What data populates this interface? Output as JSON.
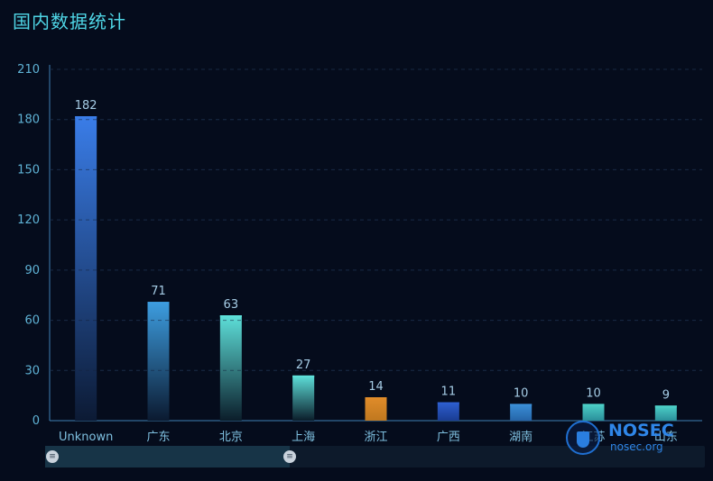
{
  "header": {
    "title": "国内数据统计"
  },
  "chart_data": {
    "type": "bar",
    "title": "国内数据统计",
    "categories": [
      "Unknown",
      "广东",
      "北京",
      "上海",
      "浙江",
      "广西",
      "湖南",
      "江苏",
      "山东"
    ],
    "values": [
      182,
      71,
      63,
      27,
      14,
      11,
      10,
      10,
      9
    ],
    "ylim": [
      0,
      210
    ],
    "yticks": [
      0,
      30,
      60,
      90,
      120,
      150,
      180,
      210
    ],
    "grid": true,
    "bar_colors": [
      [
        "#3a7de8",
        "#0c1a34"
      ],
      [
        "#3d9de0",
        "#0b1a30"
      ],
      [
        "#5ee0da",
        "#0b1d2a"
      ],
      [
        "#5ee0da",
        "#0b1d2a"
      ],
      [
        "#e08c2a",
        "#c0781f"
      ],
      [
        "#2e5fd0",
        "#1a3c92"
      ],
      [
        "#3b8fd8",
        "#2565a8"
      ],
      [
        "#4dd0c8",
        "#2a8f9a"
      ],
      [
        "#4dd0c8",
        "#2a8f9a"
      ]
    ]
  },
  "watermark": {
    "name": "NOSEC",
    "url": "nosec.org"
  },
  "zoom": {
    "handle_glyph": "≡",
    "start": 0,
    "end": 37
  }
}
